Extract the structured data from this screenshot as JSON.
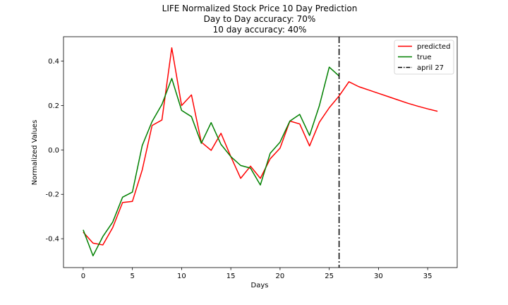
{
  "chart_data": {
    "type": "line",
    "title_lines": [
      "LIFE Normalized Stock Price 10 Day Prediction",
      "Day to Day accuracy: 70%",
      "10 day accuracy: 40%"
    ],
    "xlabel": "Days",
    "ylabel": "Normalized Values",
    "xlim": [
      -2,
      38
    ],
    "ylim": [
      -0.53,
      0.51
    ],
    "xticks": [
      0,
      5,
      10,
      15,
      20,
      25,
      30,
      35
    ],
    "yticks": [
      -0.4,
      -0.2,
      0.0,
      0.2,
      0.4
    ],
    "grid": false,
    "legend_position": "top-right",
    "series": [
      {
        "name": "predicted",
        "color": "#ff0000",
        "x": [
          0,
          1,
          2,
          3,
          4,
          5,
          6,
          7,
          8,
          9,
          10,
          11,
          12,
          13,
          14,
          15,
          16,
          17,
          18,
          19,
          20,
          21,
          22,
          23,
          24,
          25,
          26,
          27,
          28,
          29,
          30,
          31,
          32,
          33,
          34,
          35,
          36
        ],
        "values": [
          -0.37,
          -0.42,
          -0.428,
          -0.35,
          -0.237,
          -0.232,
          -0.09,
          0.11,
          0.135,
          0.46,
          0.2,
          0.248,
          0.035,
          -0.002,
          0.075,
          -0.03,
          -0.128,
          -0.073,
          -0.128,
          -0.04,
          0.008,
          0.13,
          0.117,
          0.018,
          0.125,
          0.19,
          0.243,
          0.307,
          0.285,
          0.27,
          0.255,
          0.24,
          0.225,
          0.21,
          0.197,
          0.185,
          0.174
        ]
      },
      {
        "name": "true",
        "color": "#008000",
        "x": [
          0,
          1,
          2,
          3,
          4,
          5,
          6,
          7,
          8,
          9,
          10,
          11,
          12,
          13,
          14,
          15,
          16,
          17,
          18,
          19,
          20,
          21,
          22,
          23,
          24,
          25,
          26
        ],
        "values": [
          -0.36,
          -0.477,
          -0.39,
          -0.325,
          -0.213,
          -0.19,
          0.02,
          0.128,
          0.205,
          0.322,
          0.178,
          0.15,
          0.03,
          0.123,
          0.025,
          -0.03,
          -0.07,
          -0.082,
          -0.158,
          -0.015,
          0.035,
          0.13,
          0.16,
          0.065,
          0.2,
          0.373,
          0.333
        ]
      }
    ],
    "vline": {
      "name": "april 27",
      "x": 26,
      "color": "#000000",
      "style": "dash-dot"
    }
  }
}
